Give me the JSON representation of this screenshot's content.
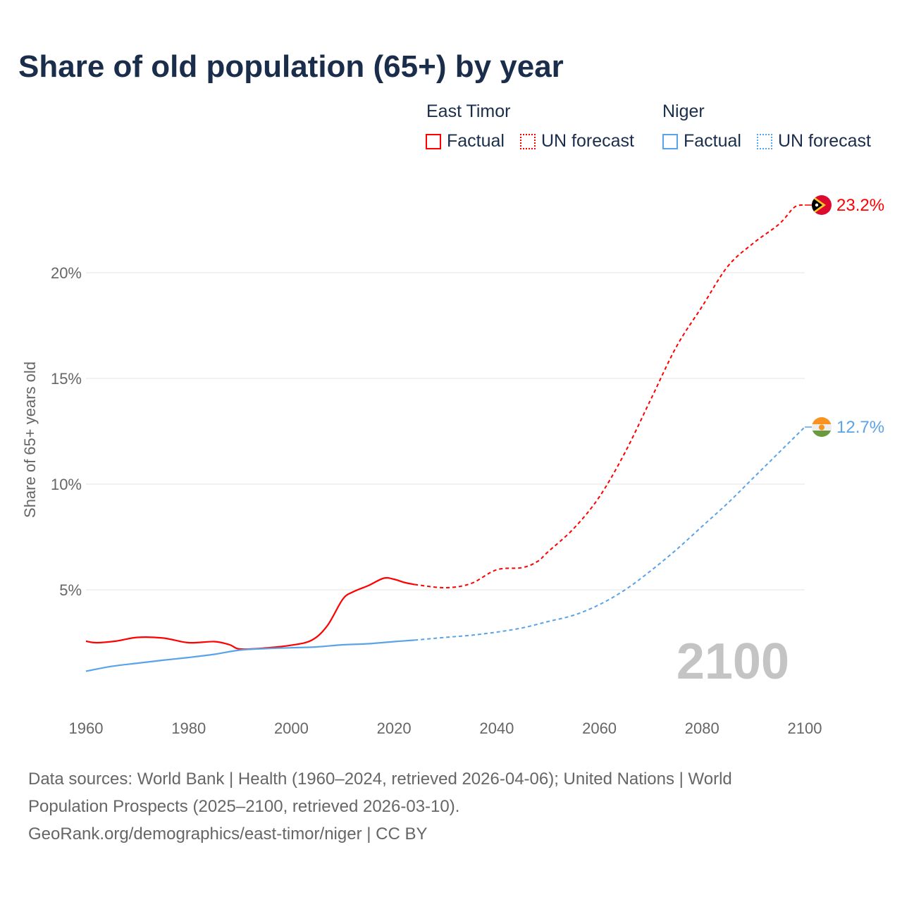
{
  "title": "Share of old population (65+) by year",
  "legend": {
    "groups": [
      {
        "country": "East Timor",
        "factual": "Factual",
        "forecast": "UN forecast",
        "color": "#ff0000"
      },
      {
        "country": "Niger",
        "factual": "Factual",
        "forecast": "UN forecast",
        "color": "#5aa3e8"
      }
    ]
  },
  "year_watermark": "2100",
  "footer": {
    "line1": "Data sources: World Bank | Health (1960–2024, retrieved 2026-04-06); United Nations | World",
    "line2": "Population Prospects (2025–2100, retrieved 2026-03-10).",
    "line3": "GeoRank.org/demographics/east-timor/niger | CC BY"
  },
  "chart_data": {
    "type": "line",
    "title": "Share of old population (65+) by year",
    "xlabel": "",
    "ylabel": "Share of 65+ years old",
    "xlim": [
      1960,
      2100
    ],
    "ylim": [
      0,
      25
    ],
    "x_ticks": [
      1960,
      1980,
      2000,
      2020,
      2040,
      2060,
      2080,
      2100
    ],
    "x_tick_labels": [
      "1960",
      "1980",
      "2000",
      "2020",
      "2040",
      "2060",
      "2080",
      "2100"
    ],
    "y_ticks": [
      5,
      10,
      15,
      20
    ],
    "y_tick_labels": [
      "5%",
      "10%",
      "15%",
      "20%"
    ],
    "grid": true,
    "legend_position": "top-right",
    "series": [
      {
        "name": "East Timor",
        "color": "#ff0000",
        "end_label": "23.2%",
        "flag": "east-timor-flag",
        "factual": [
          [
            1960,
            2.57
          ],
          [
            1962,
            2.5
          ],
          [
            1966,
            2.58
          ],
          [
            1970,
            2.75
          ],
          [
            1975,
            2.72
          ],
          [
            1980,
            2.5
          ],
          [
            1985,
            2.55
          ],
          [
            1988,
            2.4
          ],
          [
            1990,
            2.2
          ],
          [
            1995,
            2.25
          ],
          [
            2000,
            2.38
          ],
          [
            2004,
            2.62
          ],
          [
            2007,
            3.3
          ],
          [
            2010,
            4.55
          ],
          [
            2012,
            4.9
          ],
          [
            2015,
            5.2
          ],
          [
            2018,
            5.55
          ],
          [
            2020,
            5.5
          ],
          [
            2022,
            5.35
          ],
          [
            2024,
            5.25
          ]
        ],
        "forecast": [
          [
            2024,
            5.25
          ],
          [
            2030,
            5.1
          ],
          [
            2035,
            5.3
          ],
          [
            2040,
            5.95
          ],
          [
            2045,
            6.05
          ],
          [
            2048,
            6.35
          ],
          [
            2050,
            6.8
          ],
          [
            2055,
            7.9
          ],
          [
            2060,
            9.4
          ],
          [
            2065,
            11.5
          ],
          [
            2070,
            14.0
          ],
          [
            2075,
            16.5
          ],
          [
            2080,
            18.4
          ],
          [
            2085,
            20.3
          ],
          [
            2090,
            21.4
          ],
          [
            2095,
            22.3
          ],
          [
            2098,
            23.1
          ],
          [
            2100,
            23.2
          ]
        ]
      },
      {
        "name": "Niger",
        "color": "#5aa3e8",
        "end_label": "12.7%",
        "flag": "niger-flag",
        "factual": [
          [
            1960,
            1.15
          ],
          [
            1965,
            1.38
          ],
          [
            1970,
            1.53
          ],
          [
            1975,
            1.67
          ],
          [
            1980,
            1.8
          ],
          [
            1985,
            1.95
          ],
          [
            1990,
            2.15
          ],
          [
            1995,
            2.22
          ],
          [
            2000,
            2.26
          ],
          [
            2005,
            2.3
          ],
          [
            2010,
            2.4
          ],
          [
            2015,
            2.45
          ],
          [
            2020,
            2.55
          ],
          [
            2024,
            2.62
          ]
        ],
        "forecast": [
          [
            2024,
            2.62
          ],
          [
            2030,
            2.75
          ],
          [
            2035,
            2.85
          ],
          [
            2040,
            3.0
          ],
          [
            2045,
            3.2
          ],
          [
            2050,
            3.5
          ],
          [
            2055,
            3.8
          ],
          [
            2060,
            4.3
          ],
          [
            2065,
            5.0
          ],
          [
            2070,
            5.9
          ],
          [
            2075,
            6.9
          ],
          [
            2080,
            8.0
          ],
          [
            2085,
            9.1
          ],
          [
            2090,
            10.3
          ],
          [
            2095,
            11.5
          ],
          [
            2100,
            12.7
          ]
        ]
      }
    ]
  }
}
